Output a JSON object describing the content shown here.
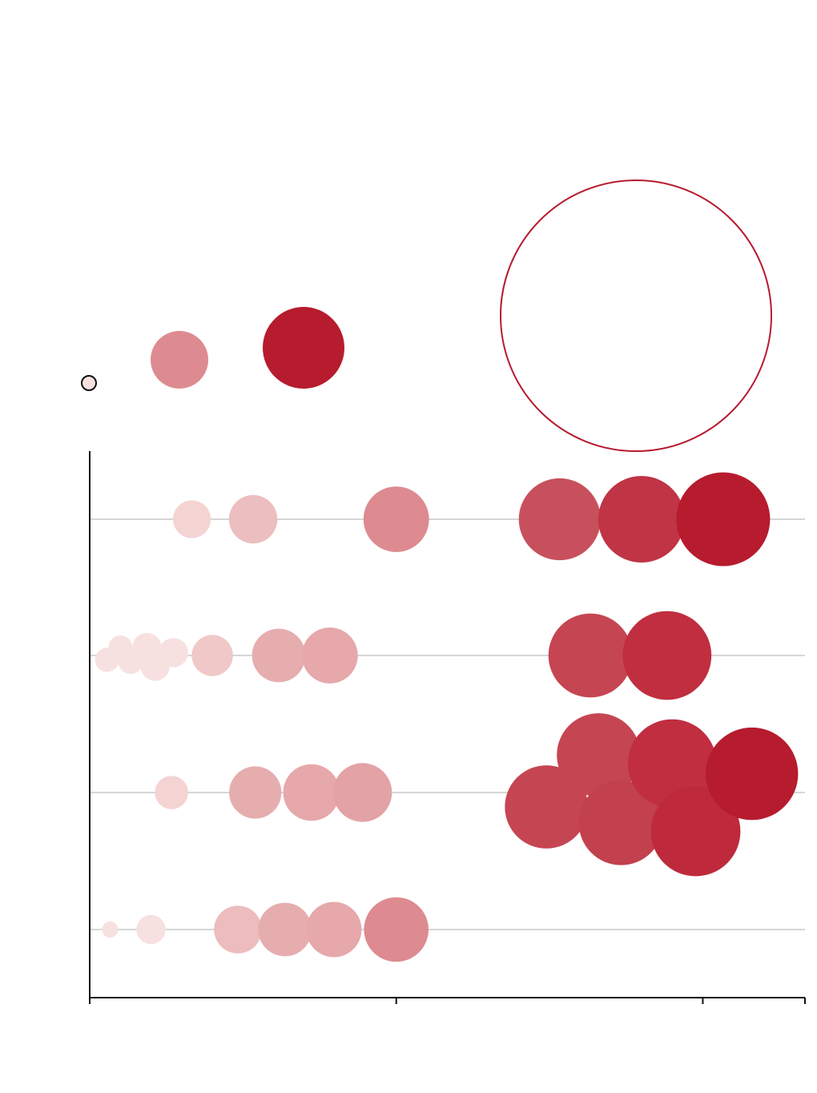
{
  "chart_data": {
    "type": "scatter",
    "title": "",
    "xlabel": "",
    "ylabel": "",
    "grid": true,
    "x_ticks": [
      0,
      3,
      6,
      7
    ],
    "xlim": [
      0,
      7
    ],
    "colors": {
      "scale": [
        "#f7e1e0",
        "#ecbebf",
        "#dd8b90",
        "#c8505d",
        "#b71b2e"
      ],
      "outline": "#b71b2e",
      "axis": "#111111",
      "grid": "#d6d6d6"
    },
    "size_legend": [
      {
        "label": "",
        "size": 1,
        "color": "#f7e1e0",
        "style": "filled"
      },
      {
        "label": "",
        "size": 70,
        "color": "#dd8b90",
        "style": "filled"
      },
      {
        "label": "",
        "size": 140,
        "color": "#b71b2e",
        "style": "filled"
      },
      {
        "label": "",
        "size": 1500,
        "color": "#b71b2e",
        "style": "outline"
      }
    ],
    "rows": [
      {
        "label": "",
        "points": [
          {
            "x": 1.0,
            "size": 22,
            "color": "#f4d4d3"
          },
          {
            "x": 1.6,
            "size": 36,
            "color": "#ecbebf"
          },
          {
            "x": 3.0,
            "size": 66,
            "color": "#dd8b90"
          },
          {
            "x": 4.6,
            "size": 103,
            "color": "#c8505d"
          },
          {
            "x": 5.4,
            "size": 115,
            "color": "#c03445"
          },
          {
            "x": 6.2,
            "size": 135,
            "color": "#b71b2e"
          }
        ]
      },
      {
        "label": "",
        "points": [
          {
            "x": 0.17,
            "size": 9,
            "color": "#f7e1e0",
            "dy": 0.3
          },
          {
            "x": 0.3,
            "size": 9,
            "color": "#f7e1e0",
            "dy": -0.55
          },
          {
            "x": 0.4,
            "size": 9,
            "color": "#f7e1e0",
            "dy": 0.45
          },
          {
            "x": 0.56,
            "size": 13,
            "color": "#f7e1e0",
            "dy": -0.55
          },
          {
            "x": 0.64,
            "size": 13,
            "color": "#f7e1e0",
            "dy": 0.75
          },
          {
            "x": 0.82,
            "size": 13,
            "color": "#f7e1e0",
            "dy": -0.2
          },
          {
            "x": 1.2,
            "size": 26,
            "color": "#f0c8c8"
          },
          {
            "x": 1.85,
            "size": 44,
            "color": "#e6adaf"
          },
          {
            "x": 2.35,
            "size": 48,
            "color": "#e6a8ab"
          },
          {
            "x": 4.9,
            "size": 108,
            "color": "#c64552"
          },
          {
            "x": 5.65,
            "size": 121,
            "color": "#c02e40"
          }
        ]
      },
      {
        "label": "",
        "points": [
          {
            "x": 0.8,
            "size": 17,
            "color": "#f4d4d3"
          },
          {
            "x": 1.62,
            "size": 42,
            "color": "#e6adaf"
          },
          {
            "x": 2.17,
            "size": 49,
            "color": "#e6a8ab"
          },
          {
            "x": 2.67,
            "size": 53,
            "color": "#e3a3a6"
          },
          {
            "x": 4.47,
            "size": 106,
            "color": "#c64552",
            "dy": 1.0
          },
          {
            "x": 4.98,
            "size": 107,
            "color": "#c64552",
            "dy": -2.6
          },
          {
            "x": 5.2,
            "size": 110,
            "color": "#c3404e",
            "dy": 2.1
          },
          {
            "x": 5.7,
            "size": 121,
            "color": "#c02e40",
            "dy": -2.0
          },
          {
            "x": 5.93,
            "size": 123,
            "color": "#be2a3b",
            "dy": 2.7
          },
          {
            "x": 6.48,
            "size": 131,
            "color": "#b71b2e",
            "dy": -1.3
          }
        ]
      },
      {
        "label": "",
        "points": [
          {
            "x": 0.2,
            "size": 4,
            "color": "#f7e1e0"
          },
          {
            "x": 0.6,
            "size": 13,
            "color": "#f7e1e0"
          },
          {
            "x": 1.45,
            "size": 35,
            "color": "#edbcbd"
          },
          {
            "x": 1.91,
            "size": 44,
            "color": "#e6adaf"
          },
          {
            "x": 2.39,
            "size": 47,
            "color": "#e6a8ab"
          },
          {
            "x": 3.0,
            "size": 64,
            "color": "#dd8b90"
          }
        ]
      }
    ]
  }
}
